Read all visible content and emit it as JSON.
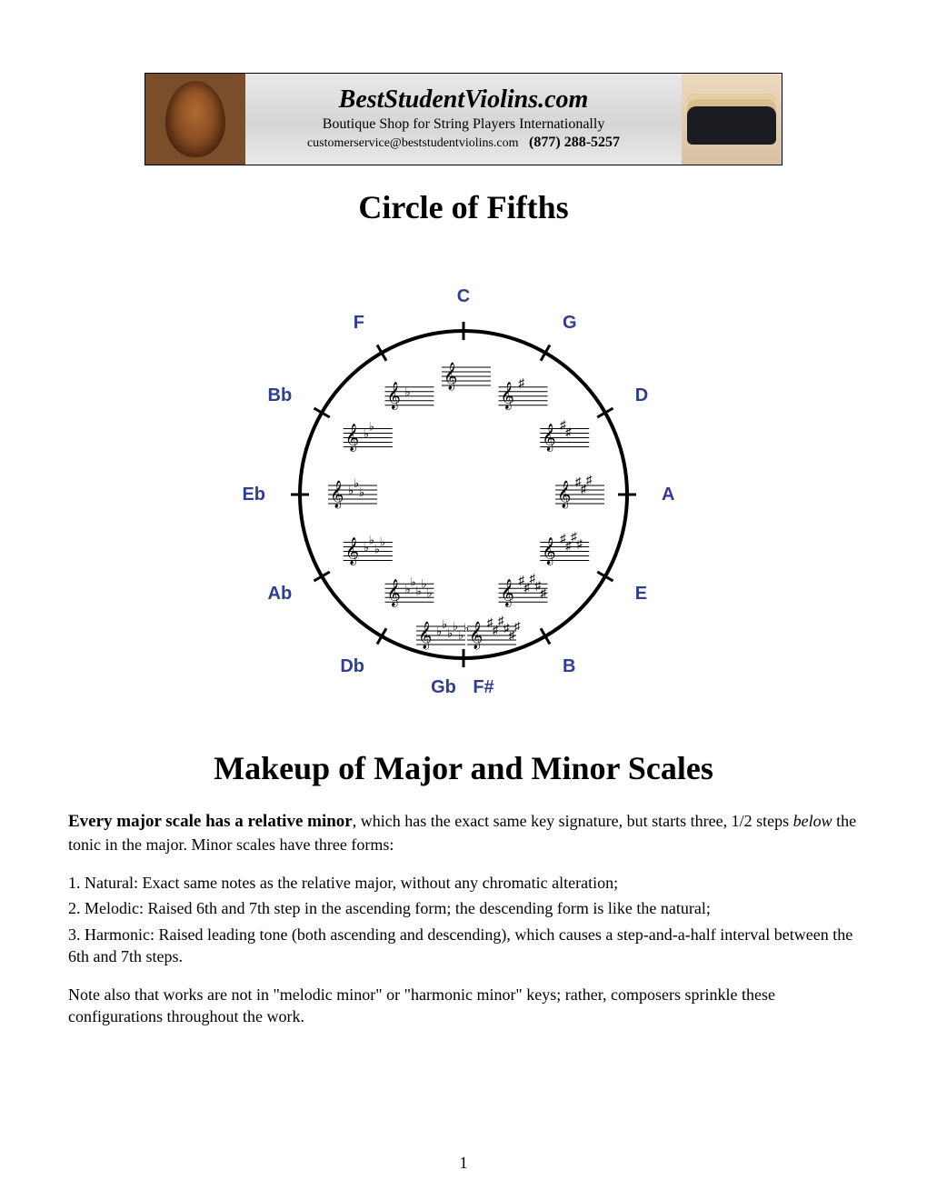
{
  "banner": {
    "site_name": "BestStudentViolins.com",
    "tagline": "Boutique Shop for String Players Internationally",
    "email": "customerservice@beststudentviolins.com",
    "phone": "(877) 288-5257"
  },
  "title1": "Circle of Fifths",
  "title2": "Makeup of Major and Minor Scales",
  "circle": {
    "labels": [
      "C",
      "G",
      "D",
      "A",
      "E",
      "B",
      "F#",
      "Gb",
      "Db",
      "Ab",
      "Eb",
      "Bb",
      "F"
    ],
    "sharps": [
      0,
      1,
      2,
      3,
      4,
      5,
      6,
      0,
      0,
      0,
      0,
      0,
      0
    ],
    "flats": [
      0,
      0,
      0,
      0,
      0,
      0,
      0,
      6,
      5,
      4,
      3,
      2,
      1
    ],
    "label_color": "#2f3e8f",
    "ring_color": "#000000"
  },
  "para_lead": "Every major scale has a relative minor",
  "para_lead_tail": ", which has the exact same key signature, but starts three, 1/2 steps ",
  "para_lead_ital": "below",
  "para_lead_end": " the tonic in the major. Minor scales have three forms:",
  "list": {
    "l1": "1. Natural: Exact same notes as the relative major, without any chromatic alteration;",
    "l2": "2. Melodic: Raised 6th and 7th step in the ascending form; the descending form is like the natural;",
    "l3": "3. Harmonic: Raised leading tone (both ascending and descending), which causes a step-and-a-half interval between the 6th and 7th steps."
  },
  "para2": "Note also that works are not in \"melodic minor\" or \"harmonic minor\" keys; rather, composers sprinkle these configurations throughout the work.",
  "page_number": "1"
}
